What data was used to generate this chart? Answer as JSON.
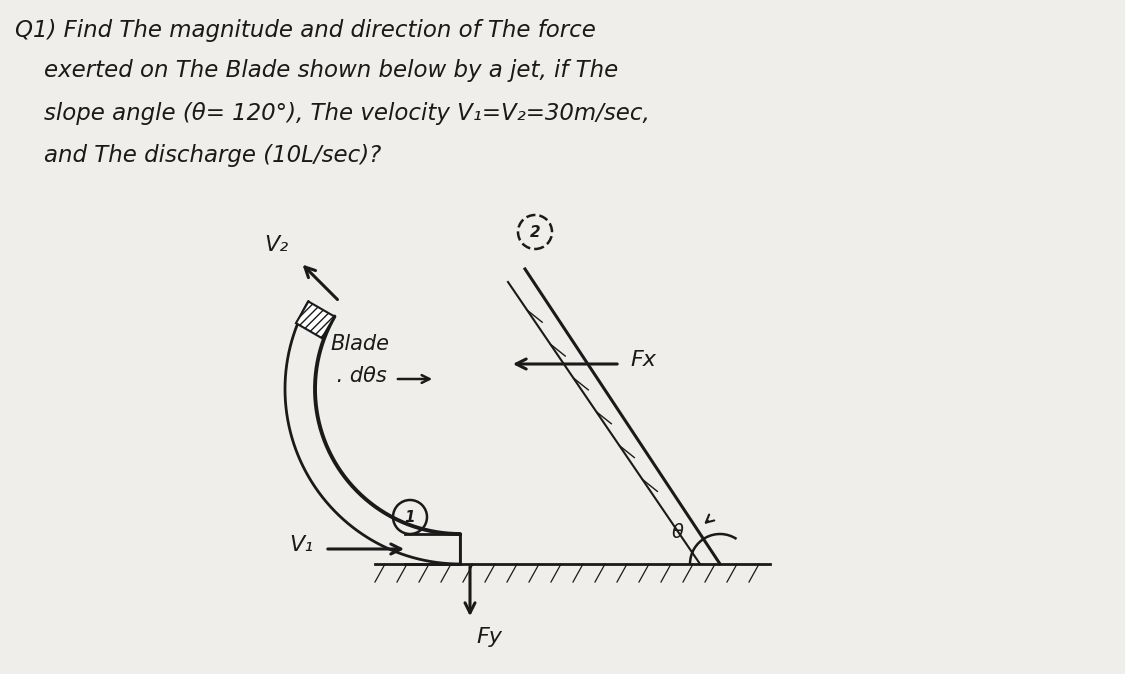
{
  "bg_color": "#f0eeea",
  "text_color": "#1a1a1a",
  "title_lines": [
    "Q1) Find The magnitude and direction of The force",
    "    exerted on The Blade shown below by a jet, if The",
    "    slope angle (θ= 120°), The velocity V₁=V₂=30m/sec,",
    "    and The discharge (10L/sec)?"
  ],
  "blade_label_line1": "Blade",
  "blade_label_line2": " . dθs",
  "v1_label": "V₁",
  "v2_label": "V₂",
  "fx_label": "Fx",
  "fy_label": "Fy",
  "theta_label": "θ"
}
